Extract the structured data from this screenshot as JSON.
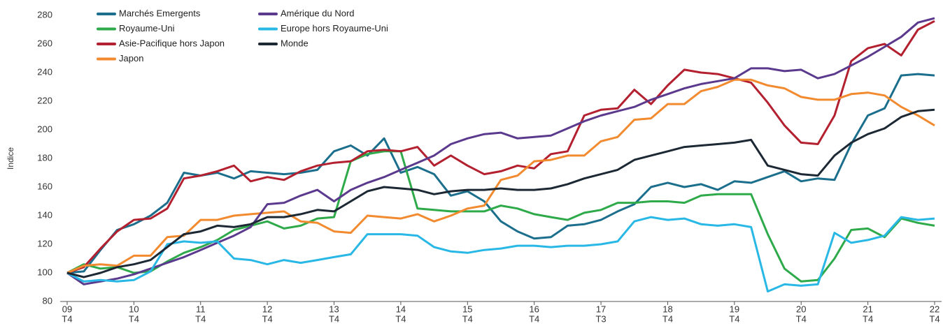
{
  "chart_data": {
    "type": "line",
    "ylabel": "Indice",
    "categories": [
      [
        "09",
        "T4"
      ],
      null,
      null,
      null,
      [
        "10",
        "T4"
      ],
      null,
      null,
      null,
      [
        "11",
        "T4"
      ],
      null,
      null,
      null,
      [
        "12",
        "T4"
      ],
      null,
      null,
      null,
      [
        "13",
        "T4"
      ],
      null,
      null,
      null,
      [
        "14",
        "T4"
      ],
      null,
      null,
      null,
      [
        "15",
        "T4"
      ],
      null,
      null,
      null,
      [
        "16",
        "T4"
      ],
      null,
      null,
      null,
      [
        "17",
        "T3"
      ],
      null,
      null,
      null,
      [
        "18",
        "T4"
      ],
      null,
      null,
      null,
      [
        "19",
        "T4"
      ],
      null,
      null,
      null,
      [
        "20",
        "T4"
      ],
      null,
      null,
      null,
      [
        "21",
        "T4"
      ],
      null,
      null,
      null,
      [
        "22",
        "T4"
      ]
    ],
    "ylim": [
      80,
      280
    ],
    "yticks": [
      80,
      100,
      120,
      140,
      160,
      180,
      200,
      220,
      240,
      260,
      280
    ],
    "series": [
      {
        "name": "Marchés Emergents",
        "color": "#1b6f8c",
        "values": [
          100,
          101,
          116,
          130,
          134,
          140,
          149,
          170,
          168,
          170,
          166,
          171,
          170,
          169,
          170,
          172,
          185,
          189,
          182,
          194,
          170,
          174,
          169,
          154,
          157,
          150,
          136,
          129,
          124,
          125,
          133,
          134,
          137,
          143,
          148,
          160,
          163,
          160,
          162,
          158,
          164,
          163,
          167,
          171,
          164,
          166,
          165,
          190,
          210,
          215,
          238,
          239,
          238
        ]
      },
      {
        "name": "Royaume-Uni",
        "color": "#2eaa4a",
        "values": [
          100,
          106,
          103,
          104,
          100,
          101,
          108,
          114,
          118,
          123,
          130,
          133,
          136,
          131,
          133,
          138,
          139,
          178,
          183,
          185,
          185,
          145,
          144,
          143,
          143,
          143,
          147,
          145,
          141,
          139,
          137,
          142,
          144,
          149,
          149,
          150,
          150,
          149,
          154,
          155,
          155,
          155,
          127,
          103,
          94,
          95,
          110,
          130,
          131,
          125,
          138,
          135,
          133
        ]
      },
      {
        "name": "Asie-Pacifique hors Japon",
        "color": "#b3202f",
        "values": [
          100,
          104,
          117,
          129,
          137,
          138,
          145,
          166,
          168,
          171,
          175,
          164,
          167,
          165,
          171,
          175,
          177,
          178,
          185,
          186,
          185,
          188,
          175,
          182,
          175,
          169,
          171,
          175,
          173,
          183,
          185,
          210,
          214,
          215,
          228,
          218,
          231,
          242,
          240,
          239,
          236,
          233,
          219,
          203,
          191,
          190,
          210,
          248,
          257,
          260,
          252,
          270,
          276
        ]
      },
      {
        "name": "Japon",
        "color": "#f28a30",
        "values": [
          100,
          105,
          106,
          105,
          112,
          112,
          125,
          126,
          137,
          137,
          140,
          141,
          142,
          143,
          136,
          135,
          129,
          128,
          140,
          139,
          138,
          141,
          136,
          140,
          145,
          147,
          165,
          168,
          178,
          179,
          182,
          182,
          192,
          195,
          207,
          208,
          218,
          218,
          227,
          230,
          235,
          235,
          231,
          229,
          223,
          221,
          221,
          225,
          226,
          224,
          216,
          210,
          203
        ]
      },
      {
        "name": "Amérique du Nord",
        "color": "#5b3a8e",
        "values": [
          100,
          92,
          94,
          96,
          99,
          103,
          107,
          111,
          116,
          121,
          126,
          132,
          148,
          149,
          154,
          158,
          150,
          158,
          163,
          167,
          172,
          177,
          182,
          190,
          194,
          197,
          198,
          194,
          195,
          196,
          201,
          206,
          210,
          213,
          216,
          221,
          225,
          229,
          232,
          234,
          236,
          243,
          243,
          241,
          242,
          236,
          239,
          245,
          251,
          258,
          265,
          275,
          278
        ]
      },
      {
        "name": "Europe hors Royaume-Uni",
        "color": "#29b8e5",
        "values": [
          100,
          94,
          95,
          94,
          95,
          101,
          120,
          122,
          121,
          122,
          110,
          109,
          106,
          109,
          107,
          109,
          111,
          113,
          127,
          127,
          127,
          126,
          118,
          115,
          114,
          116,
          117,
          119,
          119,
          118,
          119,
          119,
          120,
          122,
          136,
          139,
          137,
          138,
          134,
          133,
          134,
          132,
          87,
          92,
          91,
          92,
          128,
          121,
          123,
          126,
          139,
          137,
          138
        ]
      },
      {
        "name": "Monde",
        "color": "#1c2833",
        "values": [
          100,
          97,
          100,
          104,
          106,
          109,
          118,
          127,
          129,
          133,
          132,
          134,
          139,
          139,
          141,
          144,
          143,
          150,
          157,
          160,
          159,
          158,
          155,
          157,
          158,
          158,
          159,
          158,
          158,
          159,
          162,
          166,
          169,
          172,
          179,
          182,
          185,
          188,
          189,
          190,
          191,
          193,
          175,
          172,
          169,
          168,
          182,
          191,
          197,
          201,
          209,
          213,
          214
        ]
      }
    ]
  }
}
